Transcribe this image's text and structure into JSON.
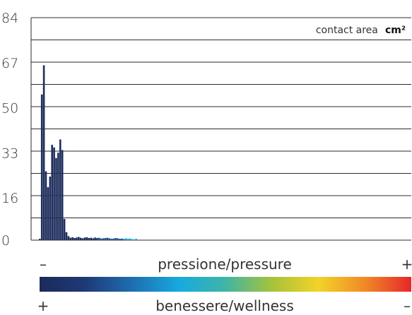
{
  "chart_data": {
    "type": "bar",
    "unit_label": "contact area",
    "unit_value": "cm²",
    "y_ticks": [
      84,
      67,
      50,
      33,
      16,
      0
    ],
    "ylim": [
      0,
      84
    ],
    "grid": true,
    "values": [
      0.5,
      55,
      66,
      26,
      20,
      24,
      36,
      35,
      31,
      33,
      38,
      34,
      8,
      3,
      1.5,
      0.9,
      1.1,
      0.8,
      1.0,
      1.2,
      0.9,
      0.7,
      1.0,
      1.1,
      0.8,
      0.9,
      0.7,
      1.0,
      0.8,
      0.9,
      0.6,
      0.7,
      0.8,
      0.9,
      0.7,
      0.5,
      0.6,
      0.8,
      0.7,
      0.5,
      0.6,
      0.4,
      0.7,
      0.5,
      0.6,
      0.4,
      0.3,
      0.5
    ],
    "pressure_label": "pressione/pressure",
    "pressure_low": "–",
    "pressure_high": "+",
    "wellness_label": "benessere/wellness",
    "wellness_high": "+",
    "wellness_low": "–"
  },
  "colors": {
    "bar_dark": "#1f2e5c",
    "bar_mid": "#1a4f8a",
    "bar_light": "#18a0d6",
    "grid": "#2b2b2b",
    "gradient": [
      "#1c2a5a",
      "#1e3a78",
      "#1d6fb0",
      "#17a9e0",
      "#3fb5a6",
      "#a6c23a",
      "#f3d32a",
      "#f08a26",
      "#e8262a"
    ]
  }
}
